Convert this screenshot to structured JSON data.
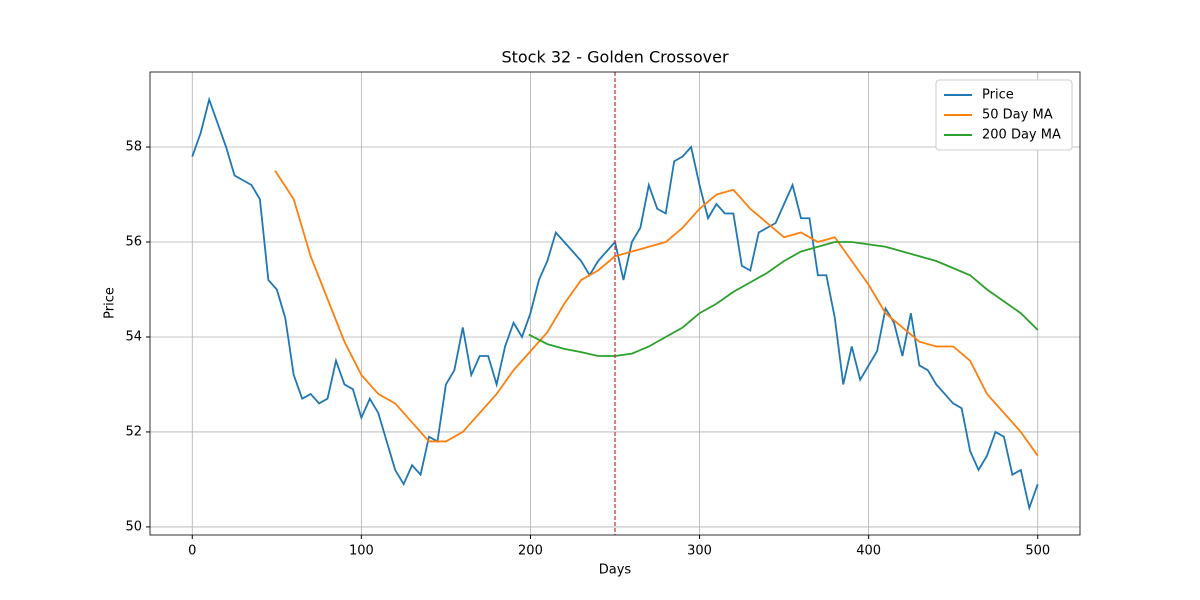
{
  "chart_data": {
    "type": "line",
    "title": "Stock 32 - Golden Crossover",
    "x_label": "Days",
    "y_label": "Price",
    "xlim": [
      -25,
      525
    ],
    "ylim": [
      49.83,
      59.58
    ],
    "xticks": [
      0,
      100,
      200,
      300,
      400,
      500
    ],
    "yticks": [
      50,
      52,
      54,
      56,
      58
    ],
    "grid": true,
    "legend": "upper right",
    "vline": {
      "x": 250,
      "color": "#d62728"
    },
    "series": [
      {
        "name": "Price",
        "color": "#1f77b4",
        "x": [
          0,
          5,
          10,
          15,
          20,
          25,
          30,
          35,
          40,
          45,
          50,
          55,
          60,
          65,
          70,
          75,
          80,
          85,
          90,
          95,
          100,
          105,
          110,
          115,
          120,
          125,
          130,
          135,
          140,
          145,
          150,
          155,
          160,
          165,
          170,
          175,
          180,
          185,
          190,
          195,
          200,
          205,
          210,
          215,
          220,
          225,
          230,
          235,
          240,
          245,
          250,
          255,
          260,
          265,
          270,
          275,
          280,
          285,
          290,
          295,
          300,
          305,
          310,
          315,
          320,
          325,
          330,
          335,
          340,
          345,
          350,
          355,
          360,
          365,
          370,
          375,
          380,
          385,
          390,
          395,
          400,
          405,
          410,
          415,
          420,
          425,
          430,
          435,
          440,
          445,
          450,
          455,
          460,
          465,
          470,
          475,
          480,
          485,
          490,
          495,
          500
        ],
        "values": [
          57.8,
          58.3,
          59.0,
          58.5,
          58.0,
          57.4,
          57.3,
          57.2,
          56.9,
          55.2,
          55.0,
          54.4,
          53.2,
          52.7,
          52.8,
          52.6,
          52.7,
          53.5,
          53.0,
          52.9,
          52.3,
          52.7,
          52.4,
          51.8,
          51.2,
          50.9,
          51.3,
          51.1,
          51.9,
          51.8,
          53.0,
          53.3,
          54.2,
          53.2,
          53.6,
          53.6,
          53.0,
          53.8,
          54.3,
          54.0,
          54.5,
          55.2,
          55.6,
          56.2,
          56.0,
          55.8,
          55.6,
          55.3,
          55.6,
          55.8,
          56.0,
          55.2,
          56.0,
          56.3,
          57.2,
          56.7,
          56.6,
          57.7,
          57.8,
          58.0,
          57.2,
          56.5,
          56.8,
          56.6,
          56.6,
          55.5,
          55.4,
          56.2,
          56.3,
          56.4,
          56.8,
          57.2,
          56.5,
          56.5,
          55.3,
          55.3,
          54.4,
          53.0,
          53.8,
          53.1,
          53.4,
          53.7,
          54.6,
          54.3,
          53.6,
          54.5,
          53.4,
          53.3,
          53.0,
          52.8,
          52.6,
          52.5,
          51.6,
          51.2,
          51.5,
          52.0,
          51.9,
          51.1,
          51.2,
          50.4,
          50.9
        ]
      },
      {
        "name": "50 Day MA",
        "color": "#ff7f0e",
        "x": [
          49,
          60,
          70,
          80,
          90,
          100,
          110,
          120,
          130,
          140,
          150,
          160,
          170,
          180,
          190,
          200,
          210,
          220,
          230,
          240,
          250,
          260,
          270,
          280,
          290,
          300,
          310,
          320,
          330,
          340,
          350,
          360,
          370,
          380,
          390,
          400,
          410,
          420,
          430,
          440,
          450,
          460,
          470,
          480,
          490,
          500
        ],
        "values": [
          57.5,
          56.9,
          55.7,
          54.8,
          53.9,
          53.2,
          52.8,
          52.6,
          52.2,
          51.8,
          51.8,
          52.0,
          52.4,
          52.8,
          53.3,
          53.7,
          54.1,
          54.7,
          55.2,
          55.4,
          55.7,
          55.8,
          55.9,
          56.0,
          56.3,
          56.7,
          57.0,
          57.1,
          56.7,
          56.4,
          56.1,
          56.2,
          56.0,
          56.1,
          55.6,
          55.1,
          54.5,
          54.2,
          53.9,
          53.8,
          53.8,
          53.5,
          52.8,
          52.4,
          52.0,
          51.5
        ]
      },
      {
        "name": "200 Day MA",
        "color": "#2ca02c",
        "x": [
          199,
          210,
          220,
          230,
          240,
          250,
          260,
          270,
          280,
          290,
          300,
          310,
          320,
          330,
          340,
          350,
          360,
          370,
          380,
          390,
          400,
          410,
          420,
          430,
          440,
          450,
          460,
          470,
          480,
          490,
          500
        ],
        "values": [
          54.05,
          53.85,
          53.75,
          53.68,
          53.6,
          53.6,
          53.65,
          53.8,
          54.0,
          54.2,
          54.5,
          54.7,
          54.95,
          55.15,
          55.35,
          55.6,
          55.8,
          55.9,
          56.0,
          56.0,
          55.95,
          55.9,
          55.8,
          55.7,
          55.6,
          55.45,
          55.3,
          55.0,
          54.75,
          54.5,
          54.15
        ]
      }
    ]
  }
}
